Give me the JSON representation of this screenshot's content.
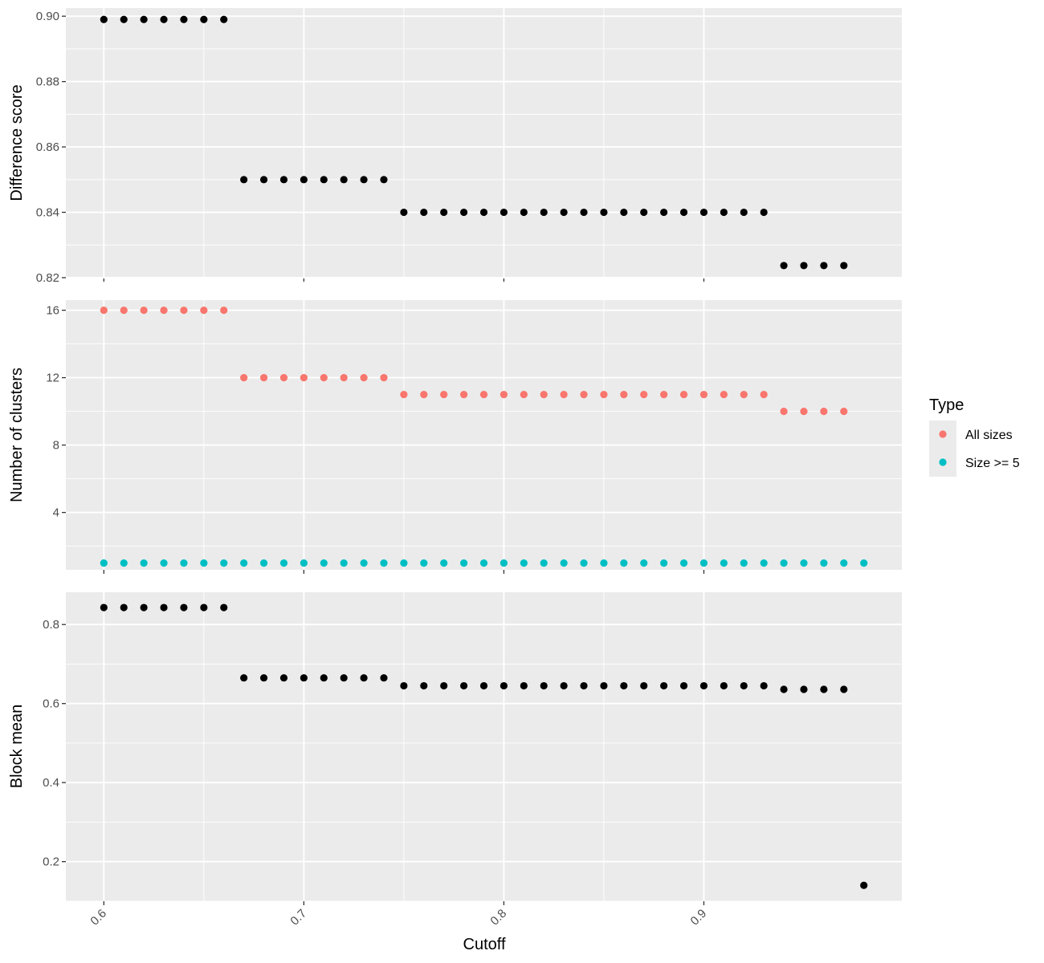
{
  "chart_data": [
    {
      "type": "scatter",
      "ylabel": "Difference score",
      "xlim": [
        0.581,
        0.999
      ],
      "ylim": [
        0.82,
        0.9025
      ],
      "yticks": [
        0.82,
        0.84,
        0.86,
        0.88,
        0.9
      ],
      "ytick_labels": [
        "0.82",
        "0.84",
        "0.86",
        "0.88",
        "0.90"
      ],
      "grid": true,
      "series": [
        {
          "color": "#000000",
          "x": [
            0.6,
            0.61,
            0.62,
            0.63,
            0.64,
            0.65,
            0.66,
            0.67,
            0.68,
            0.69,
            0.7,
            0.71,
            0.72,
            0.73,
            0.74,
            0.75,
            0.76,
            0.77,
            0.78,
            0.79,
            0.8,
            0.81,
            0.82,
            0.83,
            0.84,
            0.85,
            0.86,
            0.87,
            0.88,
            0.89,
            0.9,
            0.91,
            0.92,
            0.93,
            0.94,
            0.95,
            0.96,
            0.97
          ],
          "y": [
            0.899,
            0.899,
            0.899,
            0.899,
            0.899,
            0.899,
            0.899,
            0.85,
            0.85,
            0.85,
            0.85,
            0.85,
            0.85,
            0.85,
            0.85,
            0.84,
            0.84,
            0.84,
            0.84,
            0.84,
            0.84,
            0.84,
            0.84,
            0.84,
            0.84,
            0.84,
            0.84,
            0.84,
            0.84,
            0.84,
            0.84,
            0.84,
            0.84,
            0.84,
            0.8237,
            0.8237,
            0.8237,
            0.8237
          ]
        }
      ]
    },
    {
      "type": "scatter",
      "ylabel": "Number of clusters",
      "xlim": [
        0.581,
        0.999
      ],
      "ylim": [
        0.6,
        16.6
      ],
      "yticks": [
        4,
        8,
        12,
        16
      ],
      "ytick_labels": [
        "4",
        "8",
        "12",
        "16"
      ],
      "grid": true,
      "series": [
        {
          "name": "All sizes",
          "color": "#F8766D",
          "x": [
            0.6,
            0.61,
            0.62,
            0.63,
            0.64,
            0.65,
            0.66,
            0.67,
            0.68,
            0.69,
            0.7,
            0.71,
            0.72,
            0.73,
            0.74,
            0.75,
            0.76,
            0.77,
            0.78,
            0.79,
            0.8,
            0.81,
            0.82,
            0.83,
            0.84,
            0.85,
            0.86,
            0.87,
            0.88,
            0.89,
            0.9,
            0.91,
            0.92,
            0.93,
            0.94,
            0.95,
            0.96,
            0.97
          ],
          "y": [
            16,
            16,
            16,
            16,
            16,
            16,
            16,
            12,
            12,
            12,
            12,
            12,
            12,
            12,
            12,
            11,
            11,
            11,
            11,
            11,
            11,
            11,
            11,
            11,
            11,
            11,
            11,
            11,
            11,
            11,
            11,
            11,
            11,
            11,
            10,
            10,
            10,
            10
          ]
        },
        {
          "name": "Size >= 5",
          "color": "#00BFC4",
          "x": [
            0.6,
            0.61,
            0.62,
            0.63,
            0.64,
            0.65,
            0.66,
            0.67,
            0.68,
            0.69,
            0.7,
            0.71,
            0.72,
            0.73,
            0.74,
            0.75,
            0.76,
            0.77,
            0.78,
            0.79,
            0.8,
            0.81,
            0.82,
            0.83,
            0.84,
            0.85,
            0.86,
            0.87,
            0.88,
            0.89,
            0.9,
            0.91,
            0.92,
            0.93,
            0.94,
            0.95,
            0.96,
            0.97,
            0.98
          ],
          "y": [
            1,
            1,
            1,
            1,
            1,
            1,
            1,
            1,
            1,
            1,
            1,
            1,
            1,
            1,
            1,
            1,
            1,
            1,
            1,
            1,
            1,
            1,
            1,
            1,
            1,
            1,
            1,
            1,
            1,
            1,
            1,
            1,
            1,
            1,
            1,
            1,
            1,
            1,
            1
          ]
        }
      ],
      "legend": {
        "title": "Type",
        "placement": "right",
        "entries": [
          "All sizes",
          "Size >= 5"
        ]
      }
    },
    {
      "type": "scatter",
      "ylabel": "Block mean",
      "xlabel": "Cutoff",
      "xlim": [
        0.581,
        0.999
      ],
      "ylim": [
        0.0998,
        0.8817
      ],
      "yticks": [
        0.2,
        0.4,
        0.6,
        0.8
      ],
      "ytick_labels": [
        "0.2",
        "0.4",
        "0.6",
        "0.8"
      ],
      "xticks": [
        0.6,
        0.7,
        0.8,
        0.9
      ],
      "xtick_labels": [
        "0.6",
        "0.7",
        "0.8",
        "0.9"
      ],
      "grid": true,
      "series": [
        {
          "color": "#000000",
          "x": [
            0.6,
            0.61,
            0.62,
            0.63,
            0.64,
            0.65,
            0.66,
            0.67,
            0.68,
            0.69,
            0.7,
            0.71,
            0.72,
            0.73,
            0.74,
            0.75,
            0.76,
            0.77,
            0.78,
            0.79,
            0.8,
            0.81,
            0.82,
            0.83,
            0.84,
            0.85,
            0.86,
            0.87,
            0.88,
            0.89,
            0.9,
            0.91,
            0.92,
            0.93,
            0.94,
            0.95,
            0.96,
            0.97,
            0.98
          ],
          "y": [
            0.843,
            0.843,
            0.843,
            0.843,
            0.843,
            0.843,
            0.843,
            0.665,
            0.665,
            0.665,
            0.665,
            0.665,
            0.665,
            0.665,
            0.665,
            0.645,
            0.645,
            0.645,
            0.645,
            0.645,
            0.645,
            0.645,
            0.645,
            0.645,
            0.645,
            0.645,
            0.645,
            0.645,
            0.645,
            0.645,
            0.645,
            0.645,
            0.645,
            0.645,
            0.636,
            0.636,
            0.636,
            0.636,
            0.14
          ]
        }
      ]
    }
  ]
}
